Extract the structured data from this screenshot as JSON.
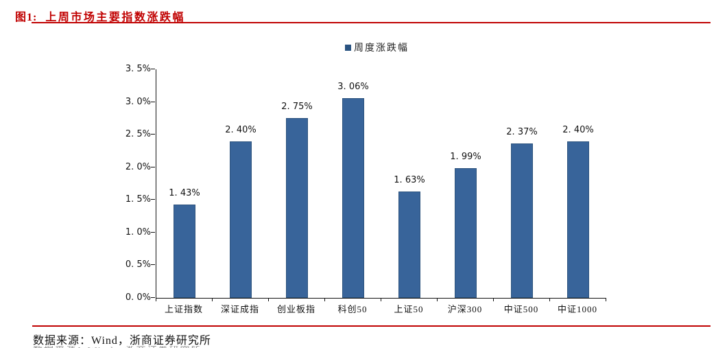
{
  "figure": {
    "label": "图1:",
    "title": "上周市场主要指数涨跌幅"
  },
  "footer": {
    "source": "数据来源：Wind，浙商证券研究所"
  },
  "colors": {
    "accent_red": "#C00000",
    "bar_fill": "#38649A",
    "bar_border": "#2E547E",
    "legend_marker": "#2A5381",
    "axis": "#111111"
  },
  "chart_data": {
    "type": "bar",
    "title": "上周市场主要指数涨跌幅",
    "series_name": "周度涨跌幅",
    "legend_position": "top",
    "grid": false,
    "categories": [
      "上证指数",
      "深证成指",
      "创业板指",
      "科创50",
      "上证50",
      "沪深300",
      "中证500",
      "中证1000"
    ],
    "values": [
      1.43,
      2.4,
      2.75,
      3.06,
      1.63,
      1.99,
      2.37,
      2.4
    ],
    "data_labels": [
      "1. 43%",
      "2. 40%",
      "2. 75%",
      "3. 06%",
      "1. 63%",
      "1. 99%",
      "2. 37%",
      "2. 40%"
    ],
    "ylim": [
      0,
      3.5
    ],
    "ytick_step": 0.5,
    "ytick_labels": [
      "0. 0%",
      "0. 5%",
      "1. 0%",
      "1. 5%",
      "2. 0%",
      "2. 5%",
      "3. 0%",
      "3. 5%"
    ],
    "xlabel": "",
    "ylabel": ""
  }
}
